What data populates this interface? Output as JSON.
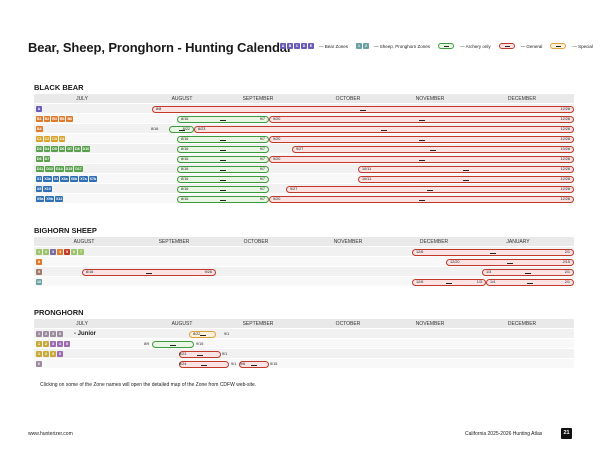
{
  "title": "Bear, Sheep, Pronghorn - Hunting Calendar",
  "legend": {
    "bear_chips": [
      "A",
      "B",
      "C",
      "D",
      "E"
    ],
    "bear_label": "— Bear Zones",
    "sheep_chips": [
      "1",
      "2"
    ],
    "sheep_label": "— Sheep, Pronghorn Zones",
    "archery_label": "— Archery only",
    "general_label": "— General",
    "special_label": "— Special"
  },
  "colors": {
    "general": "#c0392b",
    "archery": "#3e9a3e",
    "special": "#e1a040",
    "header": "#e9e9e9"
  },
  "sections": {
    "bear": {
      "title": "BLACK BEAR",
      "months": [
        "JULY",
        "AUGUST",
        "SEPTEMBER",
        "OCTOBER",
        "NOVEMBER",
        "DECEMBER"
      ],
      "rows": [
        {
          "zones": [
            {
              "t": "A",
              "c": "#6b5bb8"
            }
          ],
          "bars": [
            {
              "type": "g",
              "start": "8/8",
              "end": "12/28"
            }
          ]
        },
        {
          "zones": [
            {
              "t": "B1",
              "c": "#e07a2b"
            },
            {
              "t": "B2",
              "c": "#e07a2b"
            },
            {
              "t": "B3",
              "c": "#e07a2b"
            },
            {
              "t": "B5",
              "c": "#e07a2b"
            },
            {
              "t": "B6",
              "c": "#e07a2b"
            }
          ],
          "bars": [
            {
              "type": "a",
              "start": "8/16",
              "end": "9/7"
            },
            {
              "type": "g",
              "start": "9/20",
              "end": "12/28"
            }
          ]
        },
        {
          "zones": [
            {
              "t": "B4",
              "c": "#e07a2b"
            }
          ],
          "marks": [
            "8/16"
          ],
          "bars": [
            {
              "type": "a",
              "start": "",
              "end": "8/22"
            },
            {
              "type": "g",
              "start": "8/23",
              "end": "12/28"
            }
          ]
        },
        {
          "zones": [
            {
              "t": "C1",
              "c": "#d9a32a"
            },
            {
              "t": "C2",
              "c": "#d9a32a"
            },
            {
              "t": "C3",
              "c": "#d9a32a"
            },
            {
              "t": "C4",
              "c": "#d9a32a"
            }
          ],
          "bars": [
            {
              "type": "a",
              "start": "8/16",
              "end": "9/7"
            },
            {
              "type": "g",
              "start": "9/20",
              "end": "12/28"
            }
          ]
        },
        {
          "zones": [
            {
              "t": "D3",
              "c": "#58a04c"
            },
            {
              "t": "D4",
              "c": "#58a04c"
            },
            {
              "t": "D5",
              "c": "#58a04c"
            },
            {
              "t": "D6",
              "c": "#58a04c"
            },
            {
              "t": "D7",
              "c": "#58a04c"
            },
            {
              "t": "D8",
              "c": "#58a04c"
            },
            {
              "t": "D10",
              "c": "#58a04c"
            }
          ],
          "bars": [
            {
              "type": "a",
              "start": "8/16",
              "end": "9/7"
            },
            {
              "type": "g",
              "start": "9/27",
              "end": "10/26"
            }
          ]
        },
        {
          "zones": [
            {
              "t": "D6",
              "c": "#58a04c"
            },
            {
              "t": "D7",
              "c": "#58a04c"
            }
          ],
          "bars": [
            {
              "type": "a",
              "start": "8/16",
              "end": "9/7"
            },
            {
              "type": "g",
              "start": "9/20",
              "end": "12/28"
            }
          ]
        },
        {
          "zones": [
            {
              "t": "D11",
              "c": "#58a04c"
            },
            {
              "t": "D12",
              "c": "#58a04c"
            },
            {
              "t": "D14",
              "c": "#58a04c"
            },
            {
              "t": "D15",
              "c": "#58a04c"
            },
            {
              "t": "D17",
              "c": "#58a04c"
            }
          ],
          "bars": [
            {
              "type": "a",
              "start": "8/16",
              "end": "9/7"
            },
            {
              "type": "g",
              "start": "10/11",
              "end": "12/28"
            }
          ]
        },
        {
          "zones": [
            {
              "t": "X1",
              "c": "#2f6fb3"
            },
            {
              "t": "X3a",
              "c": "#2f6fb3"
            },
            {
              "t": "X4",
              "c": "#2f6fb3"
            },
            {
              "t": "X6a",
              "c": "#2f6fb3"
            },
            {
              "t": "X6b",
              "c": "#2f6fb3"
            },
            {
              "t": "X7a",
              "c": "#2f6fb3"
            },
            {
              "t": "X7b",
              "c": "#2f6fb3"
            }
          ],
          "bars": [
            {
              "type": "a",
              "start": "8/16",
              "end": "9/7"
            },
            {
              "type": "g",
              "start": "10/11",
              "end": "12/28"
            }
          ]
        },
        {
          "zones": [
            {
              "t": "X8",
              "c": "#2f6fb3"
            },
            {
              "t": "X10",
              "c": "#2f6fb3"
            }
          ],
          "bars": [
            {
              "type": "a",
              "start": "8/16",
              "end": "9/7"
            },
            {
              "type": "g",
              "start": "9/27",
              "end": "12/28"
            }
          ]
        },
        {
          "zones": [
            {
              "t": "X9a",
              "c": "#2f6fb3"
            },
            {
              "t": "X9b",
              "c": "#2f6fb3"
            },
            {
              "t": "X12",
              "c": "#2f6fb3"
            }
          ],
          "bars": [
            {
              "type": "a",
              "start": "8/16",
              "end": "9/7"
            },
            {
              "type": "g",
              "start": "9/20",
              "end": "12/28"
            }
          ]
        }
      ]
    },
    "sheep": {
      "title": "BIGHORN SHEEP",
      "months": [
        "AUGUST",
        "SEPTEMBER",
        "OCTOBER",
        "NOVEMBER",
        "DECEMBER",
        "JANUARY"
      ],
      "rows": [
        {
          "zones": [
            {
              "t": "1",
              "c": "#9cc46a"
            },
            {
              "t": "2",
              "c": "#9cc46a"
            },
            {
              "t": "3",
              "c": "#7a6b9e"
            },
            {
              "t": "4",
              "c": "#e07a2b"
            },
            {
              "t": "5",
              "c": "#c0392b"
            },
            {
              "t": "6",
              "c": "#9cc46a"
            },
            {
              "t": "7",
              "c": "#9cc46a"
            }
          ],
          "bars": [
            {
              "type": "g",
              "start": "12/6",
              "end": "2/1"
            }
          ]
        },
        {
          "zones": [
            {
              "t": "8",
              "c": "#e07a2b"
            }
          ],
          "bars": [
            {
              "type": "g",
              "start": "12/20",
              "end": "2/15"
            }
          ]
        },
        {
          "zones": [
            {
              "t": "9",
              "c": "#a07a6a"
            }
          ],
          "bars": [
            {
              "type": "g",
              "start": "8/16",
              "end": "9/26"
            },
            {
              "type": "g",
              "start": "1/3",
              "end": "2/1"
            }
          ]
        },
        {
          "zones": [
            {
              "t": "10",
              "c": "#6aa0a0"
            }
          ],
          "bars": [
            {
              "type": "g",
              "start": "12/6",
              "end": "1/3"
            },
            {
              "type": "g",
              "start": "1/4",
              "end": "2/1"
            }
          ]
        }
      ]
    },
    "pronghorn": {
      "title": "PRONGHORN",
      "months": [
        "JULY",
        "AUGUST",
        "SEPTEMBER",
        "OCTOBER",
        "NOVEMBER",
        "DECEMBER"
      ],
      "junior": "- Junior",
      "rows": [
        {
          "zones": [
            {
              "t": "1",
              "c": "#9c8a9e"
            },
            {
              "t": "2",
              "c": "#9c8a9e"
            },
            {
              "t": "3",
              "c": "#9c8a9e"
            },
            {
              "t": "6",
              "c": "#9c8a9e"
            }
          ],
          "junior": true,
          "bars": [
            {
              "type": "s",
              "start": "8/22",
              "end": ""
            }
          ],
          "marks": [
            "9/1"
          ]
        },
        {
          "zones": [
            {
              "t": "1",
              "c": "#c9a93a"
            },
            {
              "t": "2",
              "c": "#c9a93a"
            },
            {
              "t": "3",
              "c": "#9c6ab0"
            },
            {
              "t": "4",
              "c": "#9c6ab0"
            },
            {
              "t": "5",
              "c": "#9c6ab0"
            }
          ],
          "marks": [
            "8/9",
            "9/15"
          ],
          "bars": [
            {
              "type": "a",
              "start": "",
              "end": ""
            }
          ]
        },
        {
          "zones": [
            {
              "t": "1",
              "c": "#c9a93a"
            },
            {
              "t": "2",
              "c": "#c9a93a"
            },
            {
              "t": "3",
              "c": "#c9a93a"
            },
            {
              "t": "5",
              "c": "#9c6ab0"
            }
          ],
          "marks": [
            "8/23",
            "9/1"
          ],
          "bars": [
            {
              "type": "g",
              "start": "",
              "end": ""
            }
          ]
        },
        {
          "zones": [
            {
              "t": "6",
              "c": "#9c8a9e"
            }
          ],
          "marks": [
            "8/24",
            "9/1",
            "9/6",
            "9/15"
          ],
          "bars": [
            {
              "type": "g",
              "start": "",
              "end": ""
            },
            {
              "type": "g",
              "start": "",
              "end": ""
            }
          ]
        }
      ]
    }
  },
  "note": "Clicking on some of the Zone names will open the detailed map of the Zone from CDFW web-site.",
  "footer": {
    "website": "www.hunterizer.com",
    "atlas": "California 2025-2026 Hunting Atlas",
    "page": "21"
  }
}
